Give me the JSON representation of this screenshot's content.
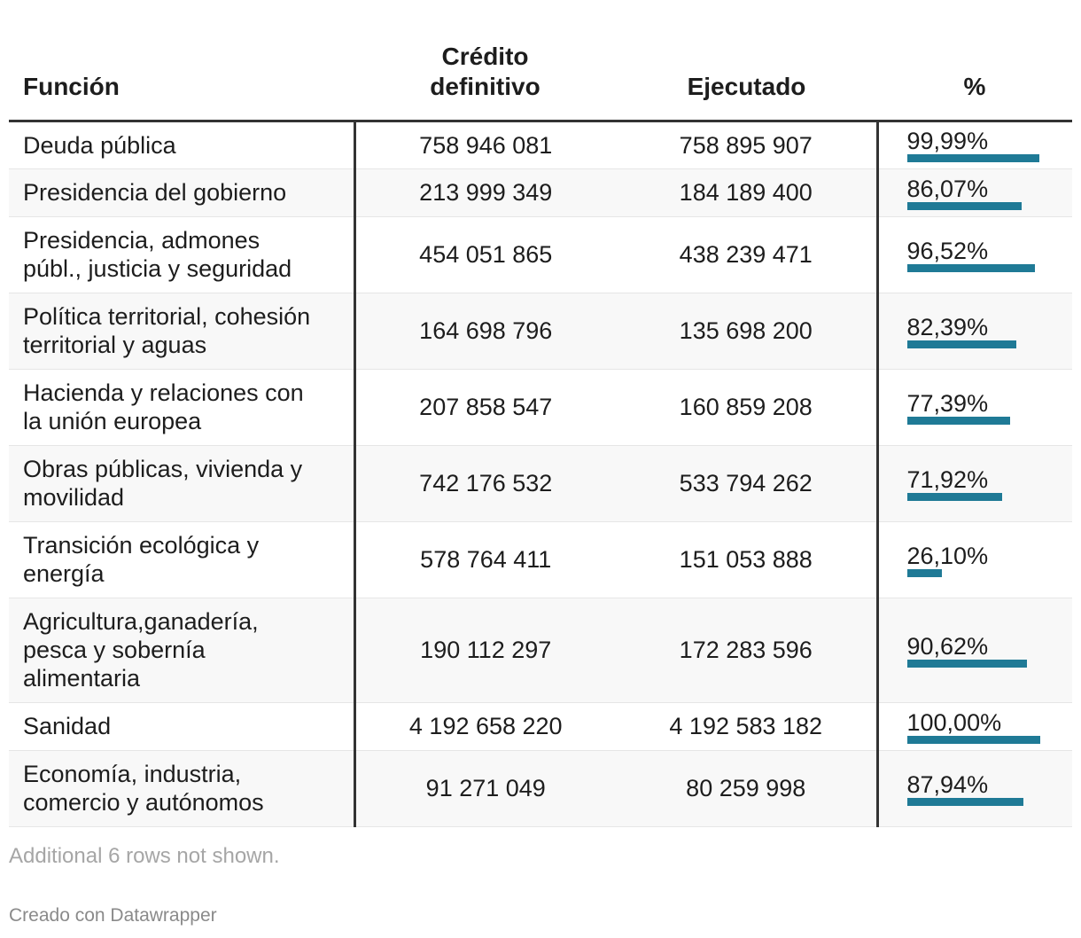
{
  "chart_data": {
    "type": "table",
    "columns": [
      "Función",
      "Crédito definitivo",
      "Ejecutado",
      "%"
    ],
    "rows": [
      {
        "funcion": [
          "Deuda pública"
        ],
        "credito": "758 946 081",
        "ejecutado": "758 895 907",
        "pct_label": "99,99%",
        "pct": 99.99
      },
      {
        "funcion": [
          "Presidencia del gobierno"
        ],
        "credito": "213 999 349",
        "ejecutado": "184 189 400",
        "pct_label": "86,07%",
        "pct": 86.07
      },
      {
        "funcion": [
          "Presidencia, admones",
          "públ., justicia y seguridad"
        ],
        "credito": "454 051 865",
        "ejecutado": "438 239 471",
        "pct_label": "96,52%",
        "pct": 96.52
      },
      {
        "funcion": [
          "Política territorial, cohesión",
          "territorial y aguas"
        ],
        "credito": "164 698 796",
        "ejecutado": "135 698 200",
        "pct_label": "82,39%",
        "pct": 82.39
      },
      {
        "funcion": [
          "Hacienda y relaciones con",
          "la unión europea"
        ],
        "credito": "207 858 547",
        "ejecutado": "160 859 208",
        "pct_label": "77,39%",
        "pct": 77.39
      },
      {
        "funcion": [
          "Obras públicas, vivienda y",
          "movilidad"
        ],
        "credito": "742 176 532",
        "ejecutado": "533 794 262",
        "pct_label": "71,92%",
        "pct": 71.92
      },
      {
        "funcion": [
          "Transición ecológica y",
          "energía"
        ],
        "credito": "578 764 411",
        "ejecutado": "151 053 888",
        "pct_label": "26,10%",
        "pct": 26.1
      },
      {
        "funcion": [
          "Agricultura,ganadería,",
          "pesca y sobernía",
          "alimentaria"
        ],
        "credito": "190 112 297",
        "ejecutado": "172 283 596",
        "pct_label": "90,62%",
        "pct": 90.62
      },
      {
        "funcion": [
          "Sanidad"
        ],
        "credito": "4 192 658 220",
        "ejecutado": "4 192 583 182",
        "pct_label": "100,00%",
        "pct": 100.0
      },
      {
        "funcion": [
          "Economía, industria,",
          "comercio y autónomos"
        ],
        "credito": "91 271 049",
        "ejecutado": "80 259 998",
        "pct_label": "87,94%",
        "pct": 87.94
      }
    ],
    "bar_color": "#1f7a96",
    "pct_max": 100
  },
  "header": {
    "funcion": "Función",
    "credito": "Crédito definitivo",
    "ejecutado": "Ejecutado",
    "pct": "%"
  },
  "footer": {
    "note": "Additional 6 rows not shown.",
    "credit": "Creado con Datawrapper"
  }
}
